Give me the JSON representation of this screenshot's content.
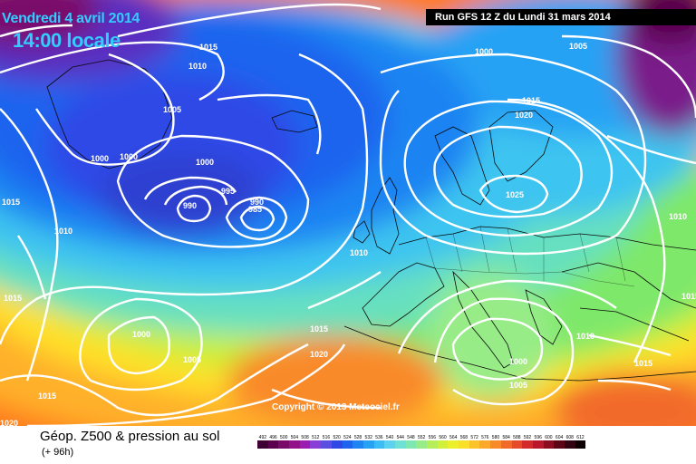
{
  "header": {
    "date": "Vendredi 4 avril 2014",
    "time": "14:00 locale",
    "run": "Run GFS 12 Z du Lundi 31 mars 2014"
  },
  "copyright": "Copyright © 2013 Meteociel.fr",
  "footer": {
    "title": "Géop. Z500 & pression au sol",
    "subtitle": "(+ 96h)"
  },
  "legend": {
    "labels": [
      "492",
      "496",
      "500",
      "504",
      "508",
      "512",
      "516",
      "520",
      "524",
      "528",
      "532",
      "536",
      "540",
      "544",
      "548",
      "552",
      "556",
      "560",
      "564",
      "568",
      "572",
      "576",
      "580",
      "584",
      "588",
      "592",
      "596",
      "600",
      "604",
      "608",
      "612"
    ],
    "colors": [
      "#3d0033",
      "#5a004d",
      "#7a0a6a",
      "#92108a",
      "#9a1fb0",
      "#8a3fd6",
      "#5a4fe0",
      "#2f48e6",
      "#1f64ee",
      "#1e84f2",
      "#26a2f4",
      "#3cbcf4",
      "#5ad2f0",
      "#6fe0d4",
      "#7ee8b0",
      "#98ec88",
      "#b6ee5a",
      "#d2f03a",
      "#ecf02a",
      "#fbe02a",
      "#fcc42a",
      "#fca82a",
      "#f98a2a",
      "#f26a2a",
      "#e64a2a",
      "#d42a2a",
      "#b8182a",
      "#8c0c20",
      "#5a0616",
      "#300410",
      "#0c0004"
    ]
  },
  "isobars": [
    "1015",
    "1010",
    "1005",
    "1000",
    "995",
    "990",
    "985",
    "1000",
    "1005",
    "1010",
    "1015",
    "1020",
    "1025",
    "1010",
    "1010",
    "1015",
    "1020",
    "1000",
    "1005",
    "1015",
    "1010",
    "1000",
    "1010",
    "1015",
    "1000",
    "1005",
    "1015",
    "1020",
    "1000",
    "1005",
    "1010",
    "1015",
    "1010",
    "1015"
  ],
  "colors": {
    "run_box": "#000000",
    "title": "#33ccff",
    "isobar": "#ffffff"
  }
}
